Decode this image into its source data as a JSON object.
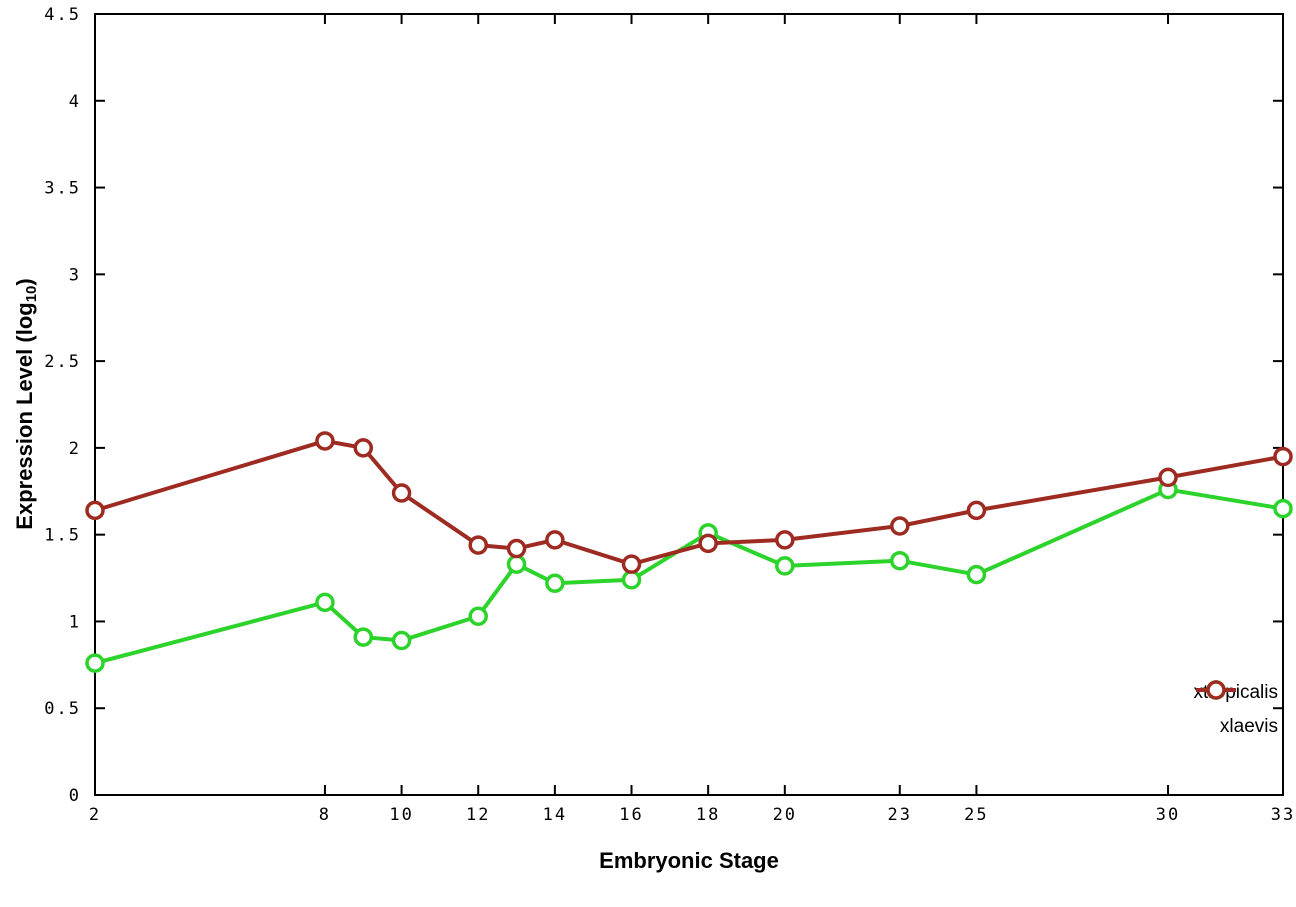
{
  "chart_data": {
    "type": "line",
    "title": "",
    "xlabel": "Embryonic Stage",
    "ylabel_main": "Expression Level (log",
    "ylabel_sub": "10",
    "ylabel_close": ")",
    "xlim": [
      2,
      33
    ],
    "ylim": [
      0,
      4.5
    ],
    "grid": false,
    "legend_position": "bottom-right",
    "x": [
      2,
      8,
      9,
      10,
      12,
      13,
      14,
      16,
      18,
      20,
      23,
      25,
      30,
      33
    ],
    "xticks": {
      "values": [
        2,
        8,
        10,
        12,
        14,
        16,
        18,
        20,
        23,
        25,
        30,
        33
      ],
      "labels": [
        "2",
        "8",
        "10",
        "12",
        "14",
        "16",
        "18",
        "20",
        "23",
        "25",
        "30",
        "33"
      ]
    },
    "yticks": {
      "values": [
        0,
        0.5,
        1,
        1.5,
        2,
        2.5,
        3,
        3.5,
        4,
        4.5
      ],
      "labels": [
        "0",
        "0.5",
        "1",
        "1.5",
        "2",
        "2.5",
        "3",
        "3.5",
        "4",
        "4.5"
      ]
    },
    "series": [
      {
        "name": "xtropicalis",
        "color": "#2bd32b",
        "values": [
          0.76,
          1.11,
          0.91,
          0.89,
          1.03,
          1.33,
          1.22,
          1.24,
          1.51,
          1.32,
          1.35,
          1.27,
          1.76,
          1.65
        ]
      },
      {
        "name": "xlaevis",
        "color": "#9e2b22",
        "values": [
          1.64,
          2.04,
          2.0,
          1.74,
          1.44,
          1.42,
          1.47,
          1.33,
          1.45,
          1.47,
          1.55,
          1.64,
          1.83,
          1.95
        ]
      }
    ]
  }
}
